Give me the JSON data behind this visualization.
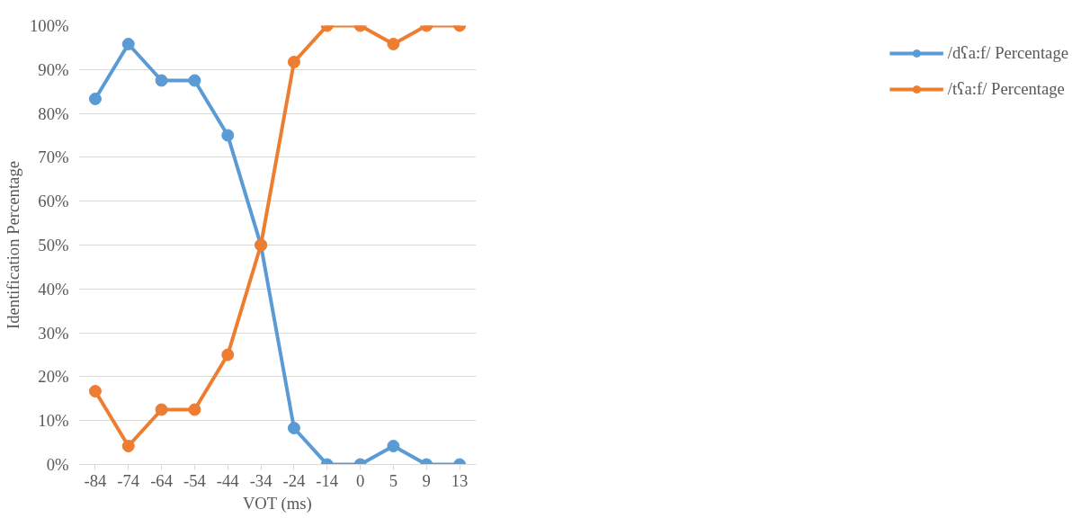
{
  "chart_data": {
    "type": "line",
    "xlabel": "VOT (ms)",
    "ylabel": "Identification Percentage",
    "categories": [
      "-84",
      "-74",
      "-64",
      "-54",
      "-44",
      "-34",
      "-24",
      "-14",
      "0",
      "5",
      "9",
      "13"
    ],
    "series": [
      {
        "name": "/dʕa:f/ Percentage",
        "color": "#5b9bd5",
        "values": [
          83.3,
          95.8,
          87.5,
          87.5,
          75,
          50,
          8.3,
          0,
          0,
          4.2,
          0,
          0
        ]
      },
      {
        "name": "/tʕa:f/ Percentage",
        "color": "#ed7d31",
        "values": [
          16.7,
          4.2,
          12.5,
          12.5,
          25,
          50,
          91.7,
          100,
          100,
          95.8,
          100,
          100
        ]
      }
    ],
    "ylim": [
      0,
      100
    ],
    "yticks": [
      {
        "value": 0,
        "label": "0%"
      },
      {
        "value": 10,
        "label": "10%"
      },
      {
        "value": 20,
        "label": "20%"
      },
      {
        "value": 30,
        "label": "30%"
      },
      {
        "value": 40,
        "label": "40%"
      },
      {
        "value": 50,
        "label": "50%"
      },
      {
        "value": 60,
        "label": "60%"
      },
      {
        "value": 70,
        "label": "70%"
      },
      {
        "value": 80,
        "label": "80%"
      },
      {
        "value": 90,
        "label": "90%"
      },
      {
        "value": 100,
        "label": "100%"
      }
    ],
    "grid": "y",
    "legend": "right",
    "marker": "circle",
    "line_style": "solid"
  }
}
